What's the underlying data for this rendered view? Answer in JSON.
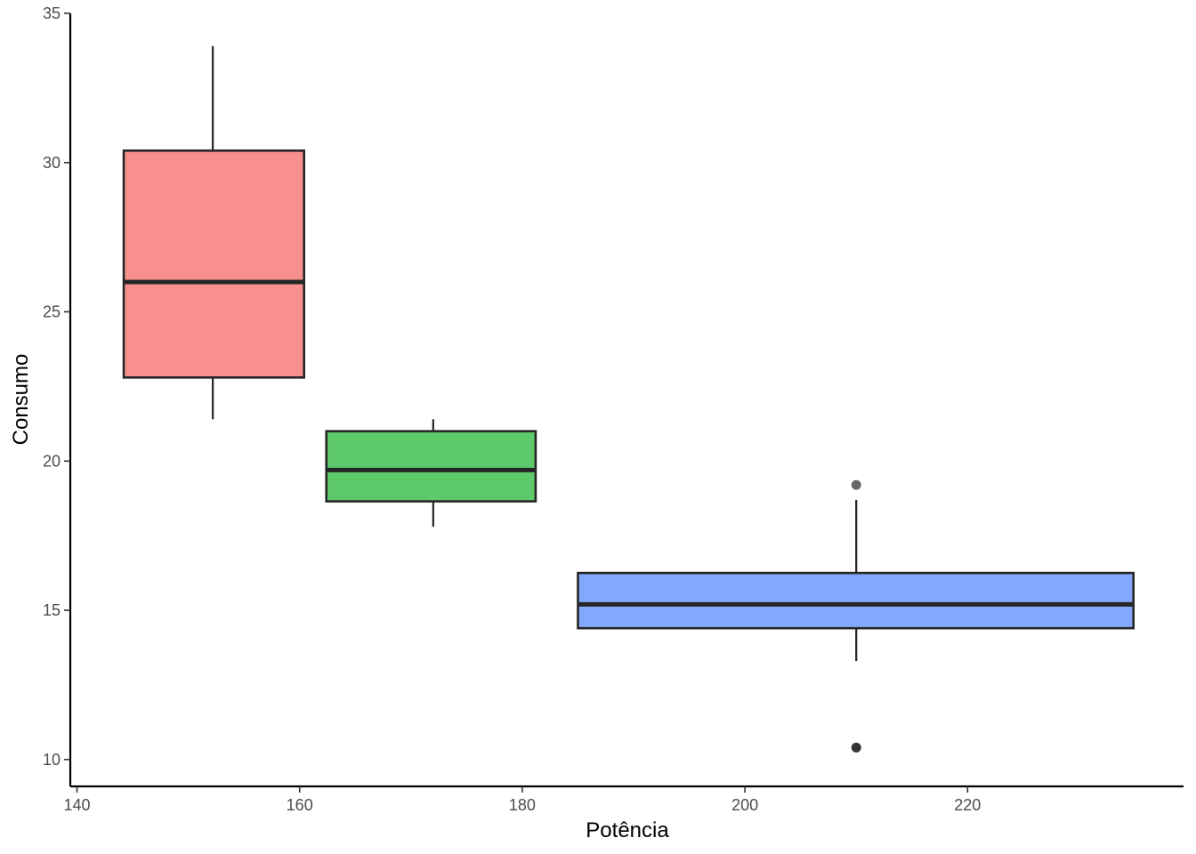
{
  "chart_data": {
    "type": "boxplot",
    "title": "",
    "xlabel": "Potência",
    "ylabel": "Consumo",
    "xlim": [
      139.4,
      239.4
    ],
    "ylim": [
      9.1,
      35
    ],
    "xticks": [
      140,
      160,
      180,
      200,
      220
    ],
    "yticks": [
      10,
      15,
      20,
      25,
      30,
      35
    ],
    "grid": false,
    "legend": "none",
    "boxes": [
      {
        "x_min": 144.2,
        "x_max": 160.4,
        "center": 152.2,
        "whisker_low": 21.4,
        "q1": 22.8,
        "median": 26.0,
        "q3": 30.4,
        "whisker_high": 33.9,
        "outliers": [],
        "color": "#F8908D"
      },
      {
        "x_min": 162.4,
        "x_max": 181.2,
        "center": 172.0,
        "whisker_low": 17.8,
        "q1": 18.65,
        "median": 19.7,
        "q3": 21.0,
        "whisker_high": 21.4,
        "outliers": [],
        "color": "#5EC96B"
      },
      {
        "x_min": 185.0,
        "x_max": 234.9,
        "center": 210.0,
        "whisker_low": 13.3,
        "q1": 14.4,
        "median": 15.2,
        "q3": 16.25,
        "whisker_high": 18.7,
        "outliers": [
          19.2,
          10.4
        ],
        "color": "#85A8FF"
      }
    ]
  }
}
